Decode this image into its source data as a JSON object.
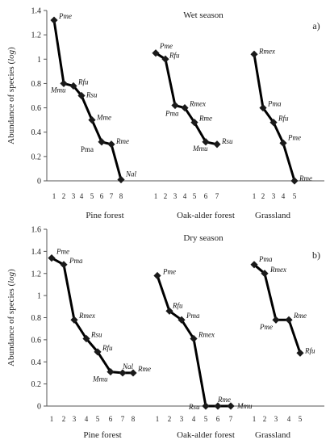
{
  "chart_data": [
    {
      "type": "line",
      "title": "Wet season",
      "panel_label": "a)",
      "ylabel": "Abundance of species (log)",
      "ylim": [
        0,
        1.4
      ],
      "yticks": [
        "0",
        "0.2",
        "0.4",
        "0.6",
        "0.8",
        "1",
        "1.2",
        "1.4"
      ],
      "groups": [
        {
          "name": "Pine forest",
          "x": [
            "1",
            "2",
            "3",
            "4",
            "5",
            "6",
            "7",
            "8"
          ],
          "values": [
            1.32,
            0.8,
            0.78,
            0.7,
            0.5,
            0.32,
            0.3,
            0.01
          ],
          "labels": [
            "Pme",
            "Mmu",
            "Rfu",
            "Rsu",
            "Mme",
            "Pma",
            "Rme",
            "Nal"
          ]
        },
        {
          "name": "Oak-alder forest",
          "x": [
            "1",
            "2",
            "3",
            "4",
            "5",
            "6",
            "7"
          ],
          "values": [
            1.05,
            1.0,
            0.62,
            0.6,
            0.48,
            0.32,
            0.3
          ],
          "labels": [
            "Pme",
            "Rfu",
            "Pma",
            "Rmex",
            "Rme",
            "Mmu",
            "Rsu"
          ]
        },
        {
          "name": "Grassland",
          "x": [
            "1",
            "2",
            "3",
            "4",
            "5"
          ],
          "values": [
            1.04,
            0.6,
            0.48,
            0.31,
            0.0
          ],
          "labels": [
            "Rmex",
            "Pma",
            "Rfu",
            "Pme",
            "Rme"
          ]
        }
      ]
    },
    {
      "type": "line",
      "title": "Dry season",
      "panel_label": "b)",
      "ylabel": "Abundance of species (log)",
      "ylim": [
        0,
        1.6
      ],
      "yticks": [
        "0",
        "0.2",
        "0.4",
        "0.6",
        "0.8",
        "1",
        "1.2",
        "1.4",
        "1.6"
      ],
      "groups": [
        {
          "name": "Pine forest",
          "x": [
            "1",
            "2",
            "3",
            "4",
            "5",
            "6",
            "7",
            "8"
          ],
          "values": [
            1.34,
            1.28,
            0.78,
            0.61,
            0.49,
            0.31,
            0.3,
            0.3
          ],
          "labels": [
            "Pme",
            "Pma",
            "Rmex",
            "Rsu",
            "Rfu",
            "Mmu",
            "Nal",
            "Rme"
          ]
        },
        {
          "name": "Oak-alder forest",
          "x": [
            "1",
            "2",
            "3",
            "4",
            "5",
            "6",
            "7"
          ],
          "values": [
            1.18,
            0.86,
            0.78,
            0.61,
            0.0,
            0.0,
            0.0
          ],
          "labels": [
            "Pme",
            "Rfu",
            "Pma",
            "Rmex",
            "Rsu",
            "Rme",
            "Mmu"
          ]
        },
        {
          "name": "Grassland",
          "x": [
            "1",
            "2",
            "3",
            "4",
            "5"
          ],
          "values": [
            1.28,
            1.2,
            0.78,
            0.78,
            0.48
          ],
          "labels": [
            "Pma",
            "Rmex",
            "Pme",
            "Rme",
            "Rfu"
          ]
        }
      ]
    }
  ]
}
